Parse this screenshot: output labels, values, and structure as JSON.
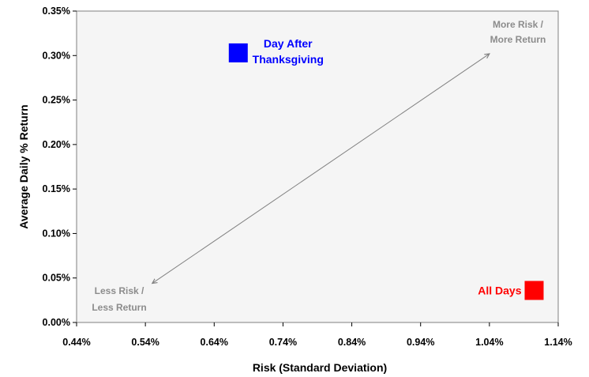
{
  "chart_data": {
    "type": "scatter",
    "title": "",
    "xlabel": "Risk (Standard Deviation)",
    "ylabel": "Average Daily % Return",
    "xlim": [
      0.44,
      1.14
    ],
    "ylim": [
      0.0,
      0.35
    ],
    "x_ticks": [
      "0.44%",
      "0.54%",
      "0.64%",
      "0.74%",
      "0.84%",
      "0.94%",
      "1.04%",
      "1.14%"
    ],
    "y_ticks": [
      "0.00%",
      "0.05%",
      "0.10%",
      "0.15%",
      "0.20%",
      "0.25%",
      "0.30%",
      "0.35%"
    ],
    "grid": false,
    "series": [
      {
        "name": "Day After Thanksgiving",
        "x": 0.675,
        "y": 0.303,
        "color": "#0000ff",
        "marker": "square",
        "label_lines": [
          "Day After",
          "Thanksgiving"
        ]
      },
      {
        "name": "All Days",
        "x": 1.105,
        "y": 0.036,
        "color": "#ff0000",
        "marker": "square",
        "label_lines": [
          "All Days"
        ]
      }
    ],
    "annotations": {
      "arrow": {
        "from": [
          0.55,
          0.044
        ],
        "to": [
          1.04,
          0.302
        ],
        "color": "#808080",
        "double_headed": true
      },
      "upper_text": [
        "More Risk /",
        "More Return"
      ],
      "lower_text": [
        "Less Risk /",
        "Less Return"
      ]
    }
  }
}
